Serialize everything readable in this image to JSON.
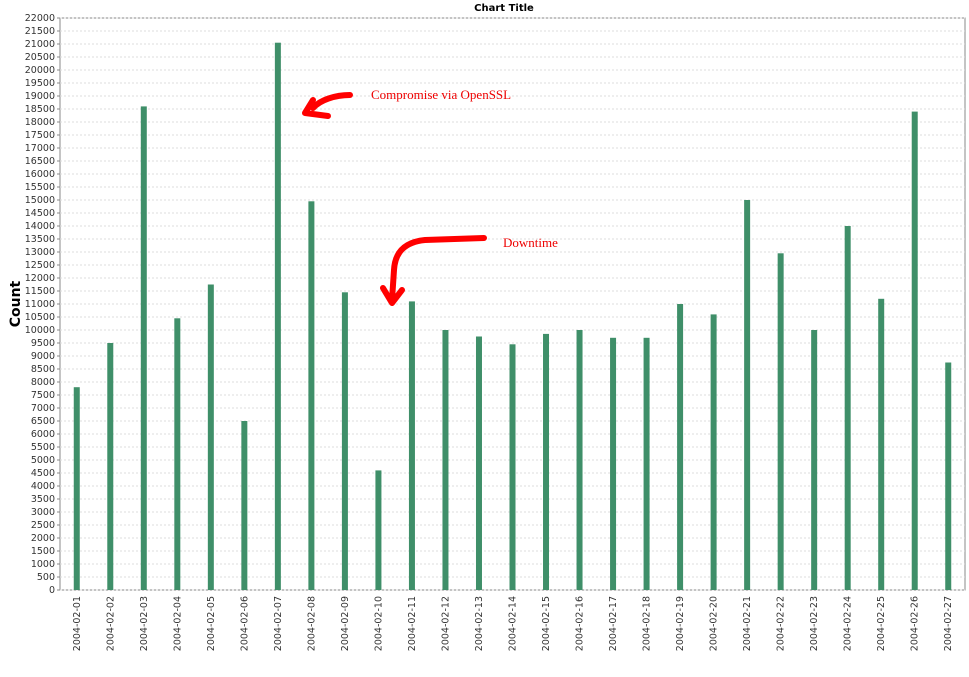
{
  "chart_data": {
    "type": "bar",
    "title": "Chart Title",
    "y_label": "Count",
    "categories": [
      "2004-02-01",
      "2004-02-02",
      "2004-02-03",
      "2004-02-04",
      "2004-02-05",
      "2004-02-06",
      "2004-02-07",
      "2004-02-08",
      "2004-02-09",
      "2004-02-10",
      "2004-02-11",
      "2004-02-12",
      "2004-02-13",
      "2004-02-14",
      "2004-02-15",
      "2004-02-16",
      "2004-02-17",
      "2004-02-18",
      "2004-02-19",
      "2004-02-20",
      "2004-02-21",
      "2004-02-22",
      "2004-02-23",
      "2004-02-24",
      "2004-02-25",
      "2004-02-26",
      "2004-02-27"
    ],
    "values": [
      7800,
      9500,
      18600,
      10450,
      11750,
      6500,
      21050,
      14950,
      11450,
      4600,
      11100,
      10000,
      9750,
      9450,
      9850,
      10000,
      9700,
      9700,
      11000,
      10600,
      15000,
      12950,
      10000,
      14000,
      11200,
      18400,
      8750
    ],
    "color": "#3f8f69",
    "ylim": [
      0,
      22000
    ],
    "yticks": [
      0,
      500,
      1000,
      1500,
      2000,
      2500,
      3000,
      3500,
      4000,
      4500,
      5000,
      5500,
      6000,
      6500,
      7000,
      7500,
      8000,
      8500,
      9000,
      9500,
      10000,
      10500,
      11000,
      11500,
      12000,
      12500,
      13000,
      13500,
      14000,
      14500,
      15000,
      15500,
      16000,
      16500,
      17000,
      17500,
      18000,
      18500,
      19000,
      19500,
      20000,
      20500,
      21000,
      21500,
      22000
    ],
    "grid": true,
    "annotations": [
      "Compromise via OpenSSL",
      "Downtime"
    ]
  }
}
